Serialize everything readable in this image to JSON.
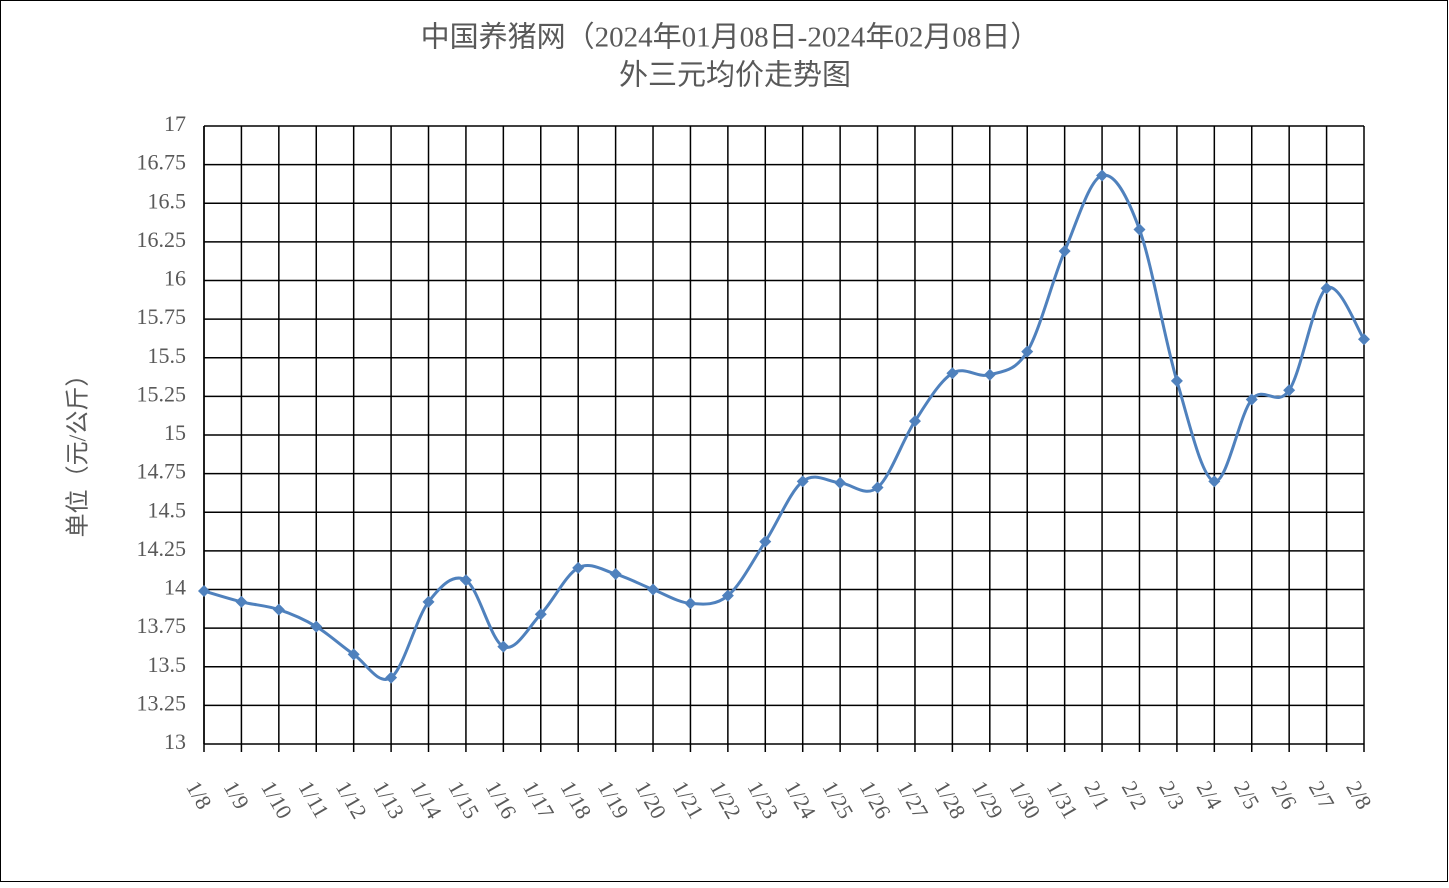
{
  "chart_data": {
    "type": "line",
    "title": "中国养猪网（2024年01月08日-2024年02月08日）",
    "subtitle": "外三元均价走势图",
    "y_label": "单位（元/公斤）",
    "categories": [
      "1/8",
      "1/9",
      "1/10",
      "1/11",
      "1/12",
      "1/13",
      "1/14",
      "1/15",
      "1/16",
      "1/17",
      "1/18",
      "1/19",
      "1/20",
      "1/21",
      "1/22",
      "1/23",
      "1/24",
      "1/25",
      "1/26",
      "1/27",
      "1/28",
      "1/29",
      "1/30",
      "1/31",
      "2/1",
      "2/2",
      "2/3",
      "2/4",
      "2/5",
      "2/6",
      "2/7",
      "2/8"
    ],
    "values": [
      13.99,
      13.92,
      13.87,
      13.76,
      13.58,
      13.43,
      13.92,
      14.06,
      13.63,
      13.84,
      14.14,
      14.1,
      14.0,
      13.91,
      13.96,
      14.31,
      14.7,
      14.69,
      14.66,
      15.09,
      15.4,
      15.39,
      15.54,
      16.19,
      16.68,
      16.33,
      15.35,
      14.7,
      15.23,
      15.29,
      15.95,
      15.62
    ],
    "color": "#4f81bd",
    "ylim": [
      13,
      17
    ],
    "yticks": [
      13,
      13.25,
      13.5,
      13.75,
      14,
      14.25,
      14.5,
      14.75,
      15,
      15.25,
      15.5,
      15.75,
      16,
      16.25,
      16.5,
      16.75,
      17
    ],
    "grid": true
  }
}
